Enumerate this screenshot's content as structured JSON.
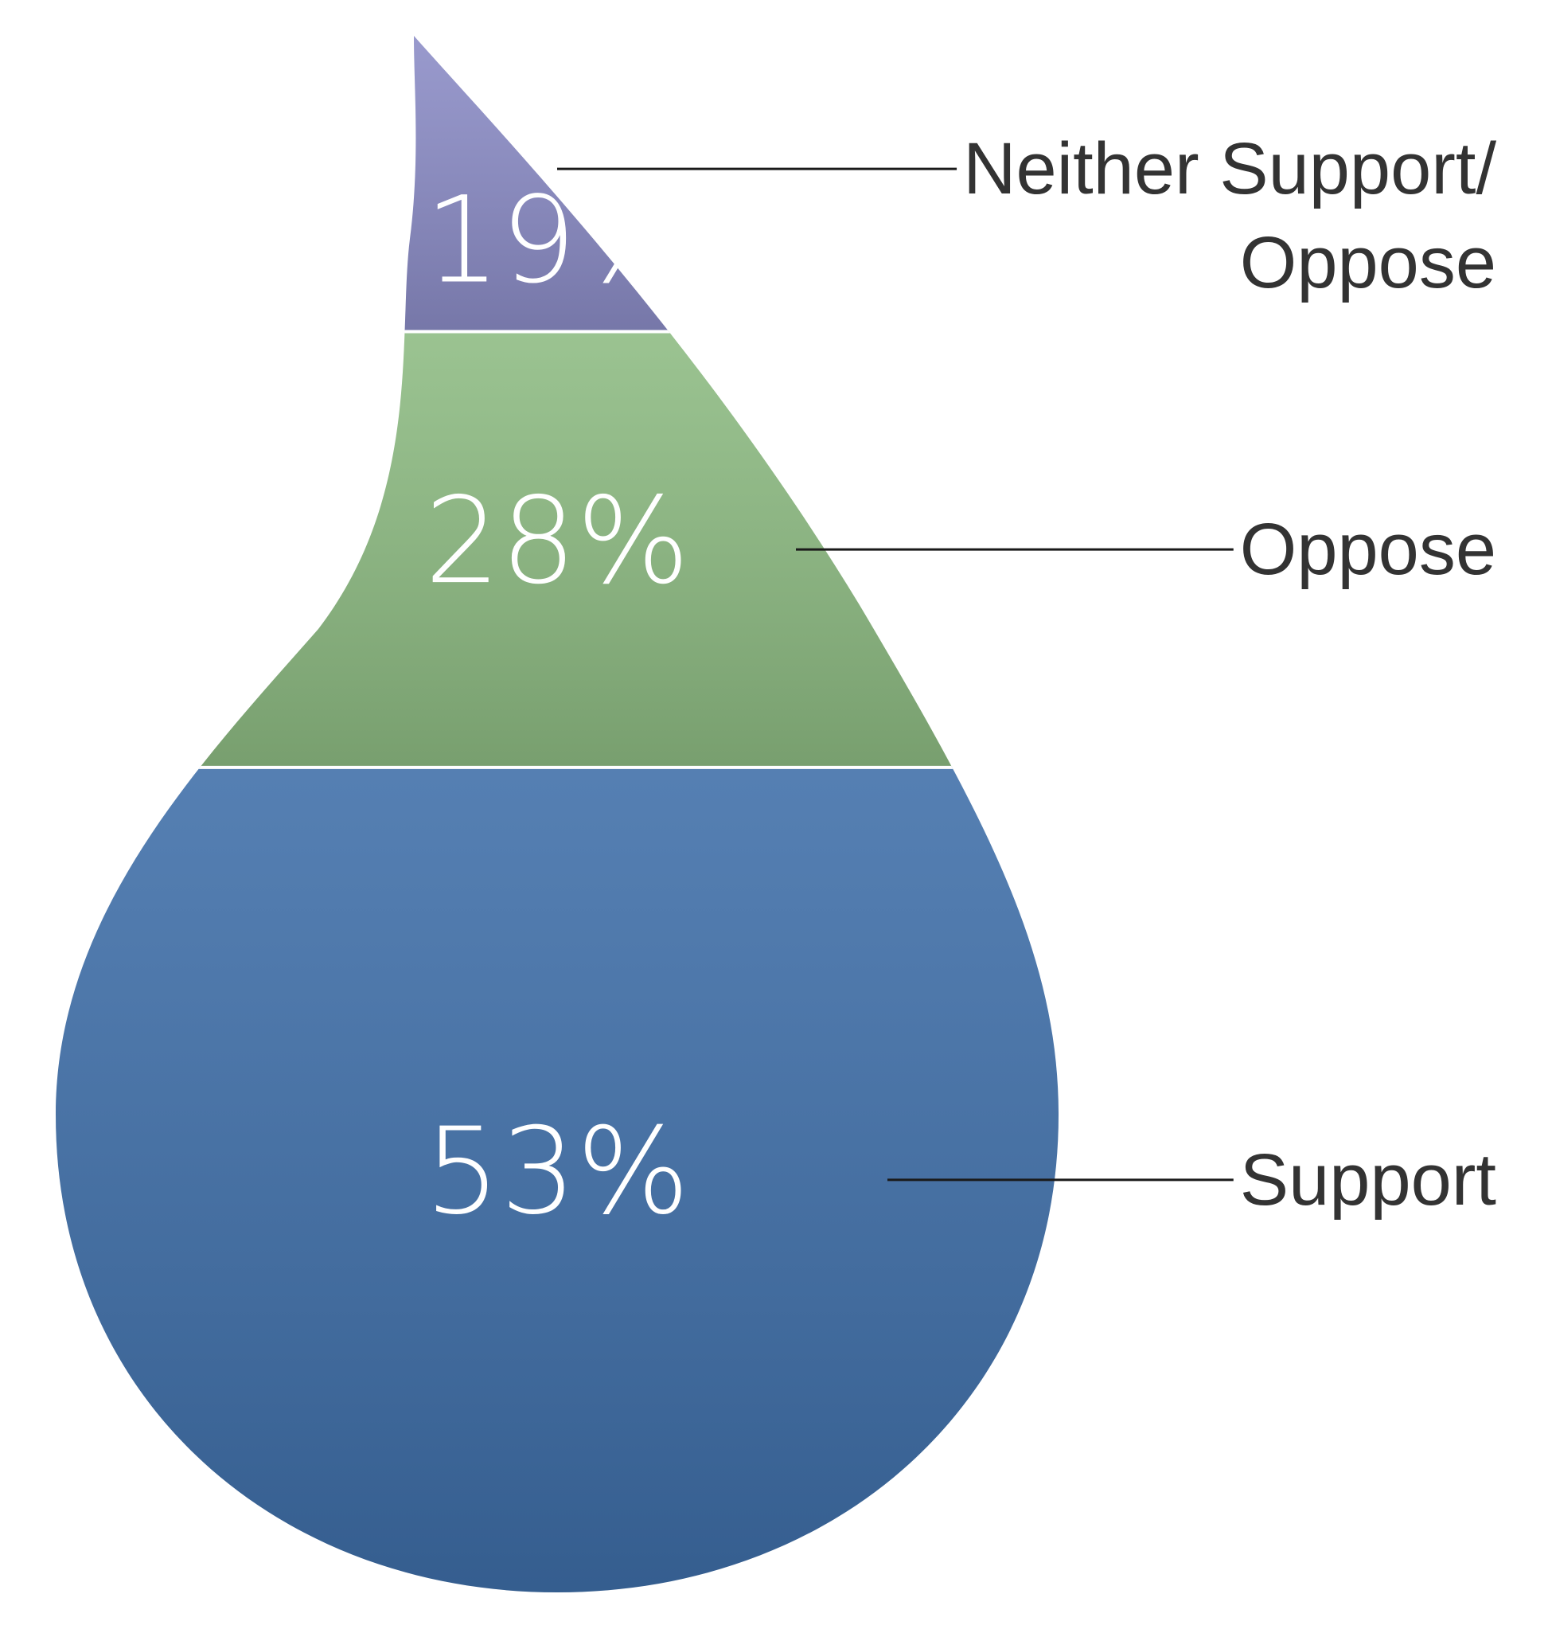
{
  "chart_data": {
    "type": "drop",
    "categories": [
      "Neither Support/ Oppose",
      "Oppose",
      "Support"
    ],
    "values": [
      19,
      28,
      53
    ],
    "value_labels": [
      "19%",
      "28%",
      "53%"
    ],
    "colors": [
      "#8b8cc6",
      "#8dbb82",
      "#3e6ea8"
    ]
  }
}
